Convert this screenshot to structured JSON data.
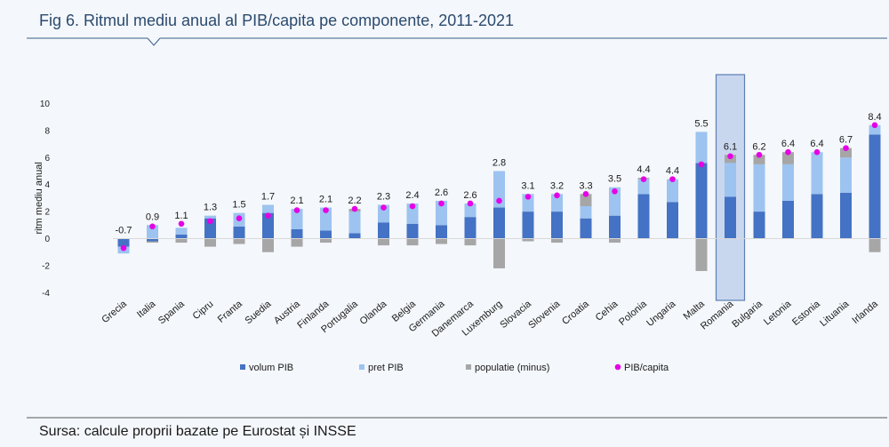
{
  "figure": {
    "title": "Fig 6. Ritmul mediu anual al PIB/capita pe componente, 2011-2021",
    "source": "Sursa: calcule proprii bazate pe Eurostat și INSSE"
  },
  "colors": {
    "background": "#f4f7fb",
    "frame_line": "#3a5f8a",
    "volum_pib": "#4472c4",
    "pret_pib": "#9dc3f0",
    "populatie": "#a6a6a6",
    "pib_capita": "#e600e6",
    "highlight_fill": "#c9d7ee",
    "highlight_stroke": "#5a7fb5"
  },
  "chart_data": {
    "type": "bar",
    "stacked": true,
    "ylabel": "ritm mediu anual",
    "ylim": [
      -4,
      10
    ],
    "yticks": [
      -4,
      -2,
      0,
      2,
      4,
      6,
      8,
      10
    ],
    "grid": false,
    "legend_position": "bottom",
    "highlighted_category": "Romania",
    "categories": [
      "Grecia",
      "Italia",
      "Spania",
      "Cipru",
      "Franta",
      "Suedia",
      "Austria",
      "Finlanda",
      "Portugalia",
      "Olanda",
      "Belgia",
      "Germania",
      "Danemarca",
      "Luxemburg",
      "Slovacia",
      "Slovenia",
      "Croatia",
      "Cehia",
      "Polonia",
      "Ungaria",
      "Malta",
      "Romania",
      "Bulgaria",
      "Letonia",
      "Estonia",
      "Lituania",
      "Irlanda"
    ],
    "series": [
      {
        "name": "volum PIB",
        "kind": "bar",
        "values": [
          -0.6,
          -0.2,
          0.3,
          1.5,
          0.9,
          1.9,
          0.7,
          0.6,
          0.4,
          1.2,
          1.1,
          1.0,
          1.6,
          2.3,
          2.0,
          2.0,
          1.5,
          1.7,
          3.3,
          2.7,
          5.6,
          3.1,
          2.0,
          2.8,
          3.3,
          3.4,
          7.7
        ]
      },
      {
        "name": "pret PIB",
        "kind": "bar",
        "values": [
          -0.5,
          1.0,
          0.5,
          0.2,
          1.0,
          0.6,
          1.5,
          1.7,
          1.6,
          1.3,
          1.5,
          1.8,
          1.0,
          2.7,
          1.3,
          1.3,
          0.9,
          2.1,
          1.1,
          1.7,
          2.3,
          2.5,
          3.5,
          2.7,
          3.1,
          2.6,
          0.7
        ]
      },
      {
        "name": "populatie (minus)",
        "kind": "bar",
        "values": [
          0.0,
          -0.1,
          -0.3,
          -0.6,
          -0.4,
          -1.0,
          -0.6,
          -0.3,
          0.2,
          -0.5,
          -0.5,
          -0.4,
          -0.5,
          -2.2,
          -0.2,
          -0.3,
          0.9,
          -0.3,
          0.1,
          0.0,
          -2.4,
          0.6,
          0.7,
          0.9,
          0.0,
          0.7,
          -1.0
        ]
      },
      {
        "name": "PIB/capita",
        "kind": "point",
        "values": [
          -0.7,
          0.9,
          1.1,
          1.3,
          1.5,
          1.7,
          2.1,
          2.1,
          2.2,
          2.3,
          2.4,
          2.6,
          2.6,
          2.8,
          3.1,
          3.2,
          3.3,
          3.5,
          4.4,
          4.4,
          5.5,
          6.1,
          6.2,
          6.4,
          6.4,
          6.7,
          8.4
        ]
      }
    ],
    "data_labels": [
      "-0.7",
      "0.9",
      "1.1",
      "1.3",
      "1.5",
      "1.7",
      "2.1",
      "2.1",
      "2.2",
      "2.3",
      "2.4",
      "2.6",
      "2.6",
      "2.8",
      "3.1",
      "3.2",
      "3.3",
      "3.5",
      "4.4",
      "4.4",
      "5.5",
      "6.1",
      "6.2",
      "6.4",
      "6.4",
      "6.7",
      "8.4"
    ]
  }
}
